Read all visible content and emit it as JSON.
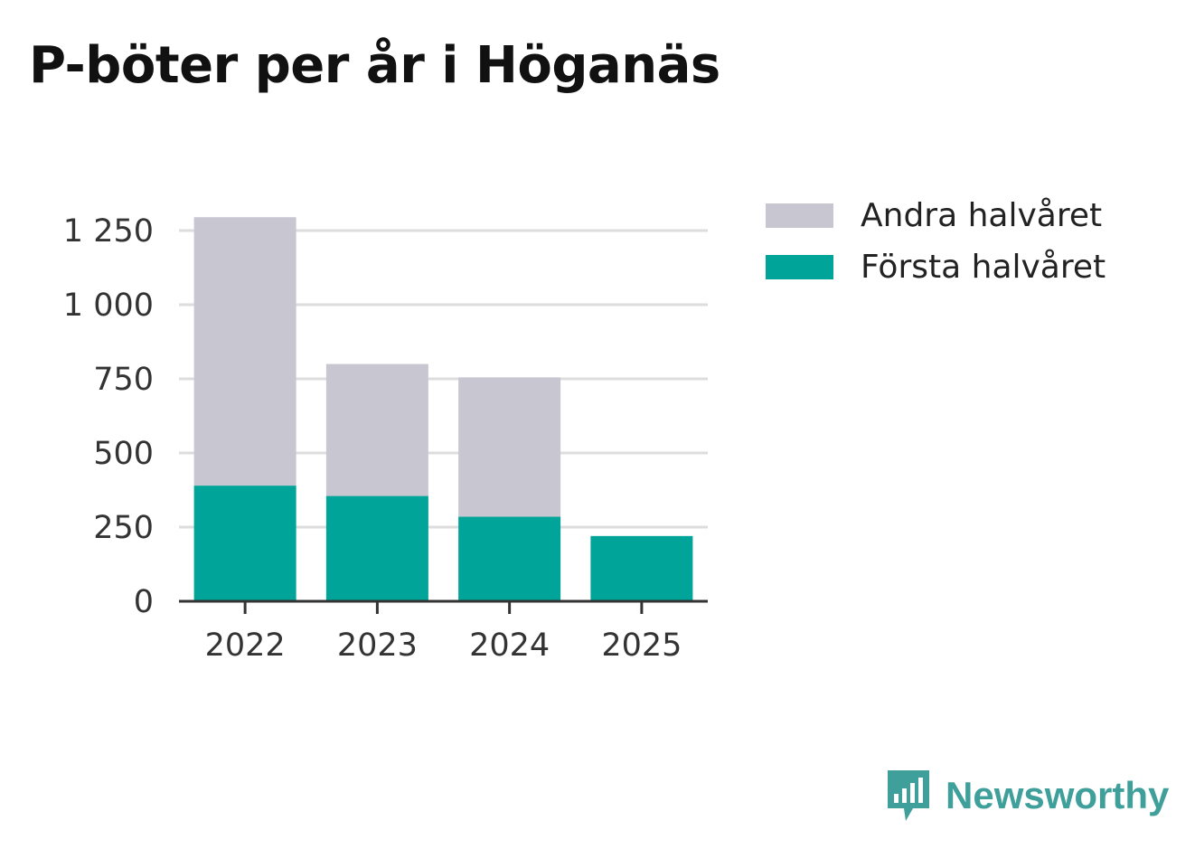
{
  "title": "P-böter per år i Höganäs",
  "brand": {
    "name": "Newsworthy",
    "icon": "newsworthy-logo-icon",
    "color": "#3f9f9a"
  },
  "colors": {
    "first_half": "#00a499",
    "second_half": "#c8c7d1",
    "grid": "#dddddd",
    "axis": "#333333"
  },
  "legend": [
    {
      "label": "Andra halvåret",
      "color": "#c8c7d1"
    },
    {
      "label": "Första halvåret",
      "color": "#00a499"
    }
  ],
  "chart_data": {
    "type": "bar",
    "stacked": true,
    "title": "P-böter per år i Höganäs",
    "xlabel": "",
    "ylabel": "",
    "categories": [
      "2022",
      "2023",
      "2024",
      "2025"
    ],
    "series": [
      {
        "name": "Första halvåret",
        "color": "#00a499",
        "values": [
          390,
          355,
          285,
          220
        ]
      },
      {
        "name": "Andra halvåret",
        "color": "#c8c7d1",
        "values": [
          905,
          445,
          470,
          0
        ]
      }
    ],
    "ylim": [
      0,
      1300
    ],
    "yticks": [
      0,
      250,
      500,
      750,
      1000,
      1250
    ],
    "ytick_labels": [
      "0",
      "250",
      "500",
      "750",
      "1 000",
      "1 250"
    ],
    "grid": true,
    "legend_position": "top-right"
  }
}
